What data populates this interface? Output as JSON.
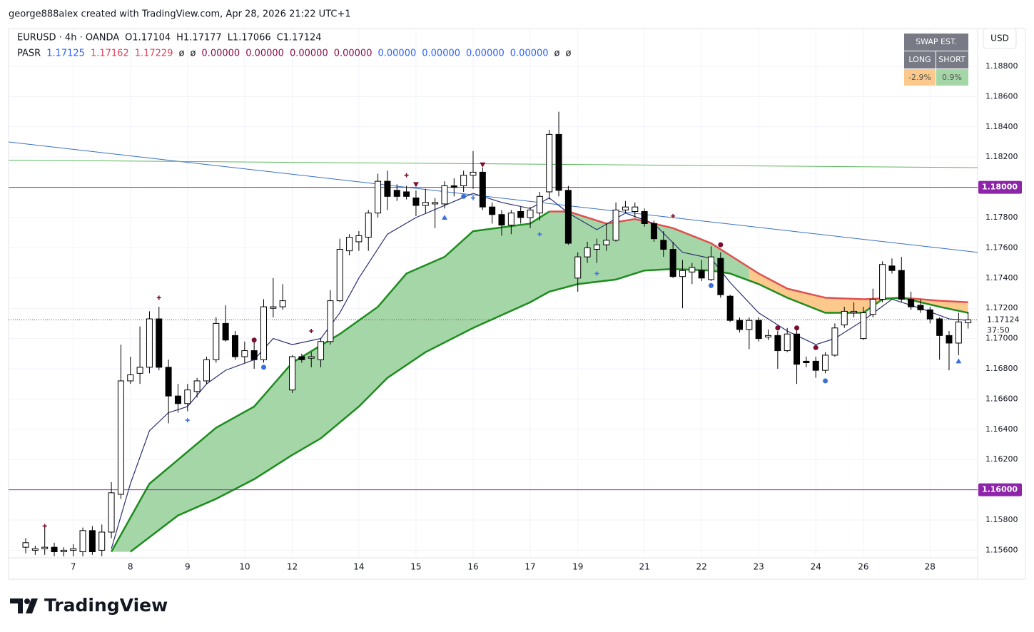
{
  "chart_data": {
    "type": "candlestick",
    "attribution": "george888alex created with TradingView.com, Apr 28, 2026 21:22 UTC+1",
    "symbol": "EURUSD · 4h · OANDA",
    "ohlc": [
      "O1.17104",
      "H1.17177",
      "L1.17066",
      "C1.17124"
    ],
    "pasr": {
      "name": "PASR",
      "values": [
        {
          "text": "1.17125",
          "color": "#2962ff"
        },
        {
          "text": "1.17162",
          "color": "#e0405a"
        },
        {
          "text": "1.17229",
          "color": "#e0405a"
        },
        {
          "text": "ø",
          "color": "#131722"
        },
        {
          "text": "ø",
          "color": "#131722"
        },
        {
          "text": "0.00000",
          "color": "#880e4f"
        },
        {
          "text": "0.00000",
          "color": "#880e4f"
        },
        {
          "text": "0.00000",
          "color": "#880e4f"
        },
        {
          "text": "0.00000",
          "color": "#880e4f"
        },
        {
          "text": "0.00000",
          "color": "#2962ff"
        },
        {
          "text": "0.00000",
          "color": "#2962ff"
        },
        {
          "text": "0.00000",
          "color": "#2962ff"
        },
        {
          "text": "0.00000",
          "color": "#2962ff"
        },
        {
          "text": "ø",
          "color": "#131722"
        },
        {
          "text": "ø",
          "color": "#131722"
        }
      ]
    },
    "swap": {
      "title": "SWAP EST.",
      "long": "LONG",
      "short": "SHORT",
      "long_value": "-2.9%",
      "short_value": "0.9%"
    },
    "currency": "USD",
    "logo": "TradingView",
    "up_color": "#ffffff",
    "down_color": "#000000",
    "wick_color": "#000000",
    "grid": true,
    "xlim": [
      -1.8,
      100
    ],
    "ylim": [
      1.1555,
      1.1905
    ],
    "xticks": [
      {
        "value": 5,
        "label": "7"
      },
      {
        "value": 11,
        "label": "8"
      },
      {
        "value": 17,
        "label": "9"
      },
      {
        "value": 23,
        "label": "10"
      },
      {
        "value": 28,
        "label": "12"
      },
      {
        "value": 35,
        "label": "14"
      },
      {
        "value": 41,
        "label": "15"
      },
      {
        "value": 47,
        "label": "16"
      },
      {
        "value": 53,
        "label": "17"
      },
      {
        "value": 58,
        "label": "19"
      },
      {
        "value": 65,
        "label": "21"
      },
      {
        "value": 71,
        "label": "22"
      },
      {
        "value": 77,
        "label": "23"
      },
      {
        "value": 83,
        "label": "24"
      },
      {
        "value": 88,
        "label": "26"
      },
      {
        "value": 95,
        "label": "28"
      }
    ],
    "yticks": [
      {
        "value": 1.188,
        "label": "1.18800"
      },
      {
        "value": 1.186,
        "label": "1.18600"
      },
      {
        "value": 1.184,
        "label": "1.18400"
      },
      {
        "value": 1.182,
        "label": "1.18200"
      },
      {
        "value": 1.178,
        "label": "1.17800"
      },
      {
        "value": 1.176,
        "label": "1.17600"
      },
      {
        "value": 1.174,
        "label": "1.17400"
      },
      {
        "value": 1.172,
        "label": "1.17200"
      },
      {
        "value": 1.17,
        "label": "1.17000"
      },
      {
        "value": 1.168,
        "label": "1.16800"
      },
      {
        "value": 1.166,
        "label": "1.16600"
      },
      {
        "value": 1.164,
        "label": "1.16400"
      },
      {
        "value": 1.162,
        "label": "1.16200"
      },
      {
        "value": 1.158,
        "label": "1.15800"
      },
      {
        "value": 1.156,
        "label": "1.15600"
      }
    ],
    "levels": [
      {
        "value": 1.18,
        "label": "1.18000",
        "color": "#8e24aa"
      },
      {
        "value": 1.16,
        "label": "1.16000",
        "color": "#8e24aa"
      }
    ],
    "last_price": {
      "value": 1.17124,
      "label": "1.17124",
      "countdown": "37:50"
    },
    "x": [
      0,
      1,
      2,
      3,
      4,
      5,
      6,
      7,
      8,
      9,
      10,
      11,
      12,
      13,
      14,
      15,
      16,
      17,
      18,
      19,
      20,
      21,
      22,
      23,
      24,
      25,
      26,
      27,
      28,
      29,
      30,
      31,
      32,
      33,
      34,
      35,
      36,
      37,
      38,
      39,
      40,
      41,
      42,
      43,
      44,
      45,
      46,
      47,
      48,
      49,
      50,
      51,
      52,
      53,
      54,
      55,
      56,
      57,
      58,
      59,
      60,
      61,
      62,
      63,
      64,
      65,
      66,
      67,
      68,
      69,
      70,
      71,
      72,
      73,
      74,
      75,
      76,
      77,
      78,
      79,
      80,
      81,
      82,
      83,
      84,
      85,
      86,
      87,
      88,
      89,
      90,
      91,
      92,
      93,
      94,
      95,
      96,
      97,
      98,
      99
    ],
    "candles": [
      [
        1.1562,
        1.1568,
        1.1558,
        1.1565
      ],
      [
        1.156,
        1.1563,
        1.1557,
        1.1561
      ],
      [
        1.1561,
        1.1576,
        1.1557,
        1.1562
      ],
      [
        1.1562,
        1.1565,
        1.1556,
        1.1559
      ],
      [
        1.1559,
        1.1562,
        1.1556,
        1.156
      ],
      [
        1.156,
        1.1564,
        1.1556,
        1.1561
      ],
      [
        1.1559,
        1.1575,
        1.1556,
        1.1573
      ],
      [
        1.1573,
        1.1576,
        1.1557,
        1.1559
      ],
      [
        1.156,
        1.1577,
        1.1556,
        1.1572
      ],
      [
        1.1572,
        1.1605,
        1.1568,
        1.1598
      ],
      [
        1.1597,
        1.1696,
        1.1594,
        1.1672
      ],
      [
        1.1672,
        1.1688,
        1.167,
        1.1676
      ],
      [
        1.1677,
        1.1708,
        1.167,
        1.1681
      ],
      [
        1.1681,
        1.1718,
        1.1677,
        1.1713
      ],
      [
        1.1713,
        1.1721,
        1.1679,
        1.1681
      ],
      [
        1.1681,
        1.1686,
        1.1644,
        1.1662
      ],
      [
        1.1662,
        1.167,
        1.1651,
        1.1657
      ],
      [
        1.1657,
        1.167,
        1.1652,
        1.1666
      ],
      [
        1.1665,
        1.1674,
        1.1661,
        1.1672
      ],
      [
        1.1672,
        1.1688,
        1.167,
        1.1686
      ],
      [
        1.1686,
        1.1714,
        1.1684,
        1.171
      ],
      [
        1.171,
        1.1722,
        1.1698,
        1.1699
      ],
      [
        1.1702,
        1.1705,
        1.1686,
        1.1688
      ],
      [
        1.1688,
        1.1698,
        1.1684,
        1.1692
      ],
      [
        1.1692,
        1.1698,
        1.168,
        1.1686
      ],
      [
        1.1686,
        1.1726,
        1.1684,
        1.1721
      ],
      [
        1.172,
        1.174,
        1.1714,
        1.1721
      ],
      [
        1.1721,
        1.1736,
        1.1719,
        1.1725
      ],
      [
        1.1666,
        1.1689,
        1.1664,
        1.1688
      ],
      [
        1.1688,
        1.169,
        1.1684,
        1.1686
      ],
      [
        1.1687,
        1.1691,
        1.1681,
        1.1688
      ],
      [
        1.1686,
        1.17,
        1.1681,
        1.1698
      ],
      [
        1.1698,
        1.1732,
        1.1696,
        1.1725
      ],
      [
        1.1725,
        1.1766,
        1.1724,
        1.1759
      ],
      [
        1.1758,
        1.1769,
        1.1755,
        1.1767
      ],
      [
        1.1764,
        1.1771,
        1.1758,
        1.1768
      ],
      [
        1.1767,
        1.1785,
        1.1758,
        1.1783
      ],
      [
        1.1783,
        1.1809,
        1.178,
        1.1804
      ],
      [
        1.1804,
        1.1811,
        1.1785,
        1.1794
      ],
      [
        1.1798,
        1.1802,
        1.1791,
        1.1794
      ],
      [
        1.1797,
        1.1801,
        1.1792,
        1.1794
      ],
      [
        1.1793,
        1.1798,
        1.1781,
        1.1788
      ],
      [
        1.1788,
        1.1799,
        1.1783,
        1.179
      ],
      [
        1.1789,
        1.1793,
        1.1773,
        1.179
      ],
      [
        1.1789,
        1.1804,
        1.1786,
        1.1801
      ],
      [
        1.1801,
        1.1806,
        1.1794,
        1.18
      ],
      [
        1.1801,
        1.1811,
        1.1797,
        1.1808
      ],
      [
        1.1808,
        1.1824,
        1.1799,
        1.181
      ],
      [
        1.181,
        1.1813,
        1.1785,
        1.1787
      ],
      [
        1.1787,
        1.179,
        1.1776,
        1.1782
      ],
      [
        1.1782,
        1.1785,
        1.1768,
        1.1775
      ],
      [
        1.1775,
        1.1785,
        1.1769,
        1.1783
      ],
      [
        1.1784,
        1.1787,
        1.1776,
        1.178
      ],
      [
        1.178,
        1.1787,
        1.1773,
        1.1785
      ],
      [
        1.1783,
        1.1797,
        1.1778,
        1.1794
      ],
      [
        1.1797,
        1.1838,
        1.1792,
        1.1835
      ],
      [
        1.1835,
        1.185,
        1.1794,
        1.1798
      ],
      [
        1.1798,
        1.1801,
        1.1762,
        1.1763
      ],
      [
        1.174,
        1.1757,
        1.1731,
        1.1754
      ],
      [
        1.1754,
        1.1764,
        1.175,
        1.176
      ],
      [
        1.1759,
        1.1766,
        1.175,
        1.1762
      ],
      [
        1.1762,
        1.1776,
        1.1758,
        1.1765
      ],
      [
        1.1765,
        1.179,
        1.1764,
        1.1785
      ],
      [
        1.1785,
        1.1791,
        1.1783,
        1.1787
      ],
      [
        1.1784,
        1.179,
        1.178,
        1.1787
      ],
      [
        1.1784,
        1.1786,
        1.1774,
        1.1776
      ],
      [
        1.1776,
        1.1778,
        1.1764,
        1.1766
      ],
      [
        1.1765,
        1.1771,
        1.1754,
        1.1759
      ],
      [
        1.1759,
        1.1764,
        1.174,
        1.1741
      ],
      [
        1.1741,
        1.1752,
        1.172,
        1.1745
      ],
      [
        1.1744,
        1.175,
        1.1736,
        1.1747
      ],
      [
        1.1745,
        1.1752,
        1.1738,
        1.174
      ],
      [
        1.1739,
        1.1761,
        1.1738,
        1.1754
      ],
      [
        1.1753,
        1.1757,
        1.1727,
        1.1729
      ],
      [
        1.1728,
        1.1729,
        1.1711,
        1.1712
      ],
      [
        1.1712,
        1.1714,
        1.1704,
        1.1706
      ],
      [
        1.1706,
        1.1714,
        1.1693,
        1.1712
      ],
      [
        1.1712,
        1.1714,
        1.1698,
        1.17
      ],
      [
        1.1701,
        1.1706,
        1.1699,
        1.1702
      ],
      [
        1.1702,
        1.1705,
        1.168,
        1.1692
      ],
      [
        1.1692,
        1.1707,
        1.1691,
        1.1703
      ],
      [
        1.1703,
        1.1707,
        1.167,
        1.1683
      ],
      [
        1.1685,
        1.1688,
        1.1681,
        1.1684
      ],
      [
        1.1685,
        1.1688,
        1.1674,
        1.1679
      ],
      [
        1.1679,
        1.1691,
        1.1677,
        1.1689
      ],
      [
        1.1689,
        1.171,
        1.1688,
        1.1707
      ],
      [
        1.1709,
        1.1721,
        1.1707,
        1.1718
      ],
      [
        1.1717,
        1.1724,
        1.1714,
        1.1718
      ],
      [
        1.17,
        1.1721,
        1.1699,
        1.1717
      ],
      [
        1.1716,
        1.1733,
        1.1714,
        1.1726
      ],
      [
        1.1726,
        1.1751,
        1.1724,
        1.1749
      ],
      [
        1.1748,
        1.1753,
        1.1743,
        1.1745
      ],
      [
        1.1745,
        1.1754,
        1.1724,
        1.1726
      ],
      [
        1.1726,
        1.1731,
        1.1719,
        1.1721
      ],
      [
        1.1722,
        1.1726,
        1.1717,
        1.1719
      ],
      [
        1.1719,
        1.1721,
        1.171,
        1.1713
      ],
      [
        1.1713,
        1.1714,
        1.1686,
        1.1702
      ],
      [
        1.1702,
        1.1705,
        1.1679,
        1.1697
      ],
      [
        1.1697,
        1.1717,
        1.1689,
        1.1711
      ],
      [
        1.17104,
        1.17177,
        1.17066,
        1.17124
      ]
    ],
    "cloud": {
      "upper": {
        "color": "#1e8c1e",
        "x": [
          9,
          13,
          20,
          24,
          28,
          33,
          37,
          40,
          44,
          47,
          53,
          55
        ],
        "values": [
          1.1559,
          1.1604,
          1.1641,
          1.1655,
          1.1684,
          1.1703,
          1.1721,
          1.1743,
          1.1754,
          1.1771,
          1.1776,
          1.1784
        ]
      },
      "upper_red": {
        "color": "#e05050",
        "x": [
          55,
          57,
          61,
          64,
          68,
          72,
          77,
          80,
          84,
          88,
          92,
          96,
          99
        ],
        "values": [
          1.1784,
          1.1784,
          1.1776,
          1.1779,
          1.1773,
          1.1763,
          1.1743,
          1.1733,
          1.1727,
          1.1726,
          1.1727,
          1.1725,
          1.1724
        ]
      },
      "lower": {
        "color": "#1e8c1e",
        "x": [
          11,
          16,
          20,
          24,
          28,
          31,
          35,
          38,
          42,
          47,
          53,
          55,
          58,
          62,
          65,
          68,
          72,
          74,
          77,
          80,
          84,
          88,
          90,
          92,
          96,
          99
        ],
        "values": [
          1.1559,
          1.1583,
          1.1594,
          1.1607,
          1.1623,
          1.1634,
          1.1655,
          1.1674,
          1.1691,
          1.1707,
          1.1724,
          1.1731,
          1.1736,
          1.1739,
          1.1745,
          1.1746,
          1.1745,
          1.1743,
          1.1736,
          1.1727,
          1.1717,
          1.1717,
          1.1726,
          1.1727,
          1.1721,
          1.1717
        ]
      },
      "fill": [
        {
          "color": "#a5d6a7",
          "from": 9,
          "to": 76
        },
        {
          "color": "#fcc98c",
          "from": 76,
          "to": 99
        }
      ]
    },
    "ma": {
      "color": "#2a2e6e",
      "x": [
        9,
        11,
        13,
        15,
        17,
        19,
        21,
        24,
        26,
        28,
        31,
        33,
        35,
        38,
        41,
        44,
        47,
        50,
        53,
        55,
        57,
        60,
        63,
        66,
        69,
        72,
        74,
        77,
        80,
        83,
        85,
        88,
        91,
        94,
        97,
        99
      ],
      "values": [
        1.1561,
        1.1604,
        1.1639,
        1.1651,
        1.1655,
        1.167,
        1.1679,
        1.1686,
        1.17,
        1.1696,
        1.17,
        1.1717,
        1.174,
        1.1769,
        1.178,
        1.1788,
        1.1796,
        1.179,
        1.1786,
        1.1793,
        1.1783,
        1.1772,
        1.1783,
        1.1776,
        1.1757,
        1.1753,
        1.1737,
        1.1717,
        1.1705,
        1.1696,
        1.17,
        1.1712,
        1.1726,
        1.172,
        1.1713,
        1.1712
      ]
    },
    "trendlines": [
      {
        "color": "#3a6fc4",
        "x": [
          -1.8,
          100
        ],
        "values": [
          1.183,
          1.1757
        ]
      },
      {
        "color": "#5cb85c",
        "x": [
          -1.8,
          100
        ],
        "values": [
          1.1818,
          1.1813
        ]
      }
    ],
    "markers": [
      {
        "x": 2,
        "value": 1.1576,
        "shape": "plus",
        "color": "#7b0d2e"
      },
      {
        "x": 14,
        "value": 1.1727,
        "shape": "plus",
        "color": "#7b0d2e"
      },
      {
        "x": 17,
        "value": 1.1646,
        "shape": "plus",
        "color": "#3a6fd8"
      },
      {
        "x": 24,
        "value": 1.1699,
        "shape": "dot",
        "color": "#7b0d2e"
      },
      {
        "x": 25,
        "value": 1.1681,
        "shape": "dot",
        "color": "#3a6fd8"
      },
      {
        "x": 30,
        "value": 1.1705,
        "shape": "plus",
        "color": "#7b0d2e"
      },
      {
        "x": 40,
        "value": 1.1808,
        "shape": "plus",
        "color": "#7b0d2e"
      },
      {
        "x": 41,
        "value": 1.1802,
        "shape": "down",
        "color": "#7b0d2e"
      },
      {
        "x": 44,
        "value": 1.178,
        "shape": "up",
        "color": "#3a6fd8"
      },
      {
        "x": 46,
        "value": 1.1794,
        "shape": "dot",
        "color": "#3a6fd8"
      },
      {
        "x": 47,
        "value": 1.1793,
        "shape": "plus",
        "color": "#3a6fd8"
      },
      {
        "x": 48,
        "value": 1.1815,
        "shape": "down",
        "color": "#7b0d2e"
      },
      {
        "x": 54,
        "value": 1.1769,
        "shape": "plus",
        "color": "#3a6fd8"
      },
      {
        "x": 60,
        "value": 1.1743,
        "shape": "plus",
        "color": "#3a6fd8"
      },
      {
        "x": 68,
        "value": 1.1781,
        "shape": "plus",
        "color": "#7b0d2e"
      },
      {
        "x": 73,
        "value": 1.1762,
        "shape": "dot",
        "color": "#7b0d2e"
      },
      {
        "x": 72,
        "value": 1.1735,
        "shape": "dot",
        "color": "#3a6fd8"
      },
      {
        "x": 79,
        "value": 1.1707,
        "shape": "dot",
        "color": "#7b0d2e"
      },
      {
        "x": 81,
        "value": 1.1707,
        "shape": "dot",
        "color": "#7b0d2e"
      },
      {
        "x": 83,
        "value": 1.1694,
        "shape": "dot",
        "color": "#7b0d2e"
      },
      {
        "x": 84,
        "value": 1.1672,
        "shape": "dot",
        "color": "#3a6fd8"
      },
      {
        "x": 98,
        "value": 1.1685,
        "shape": "up",
        "color": "#3a6fd8"
      }
    ]
  }
}
